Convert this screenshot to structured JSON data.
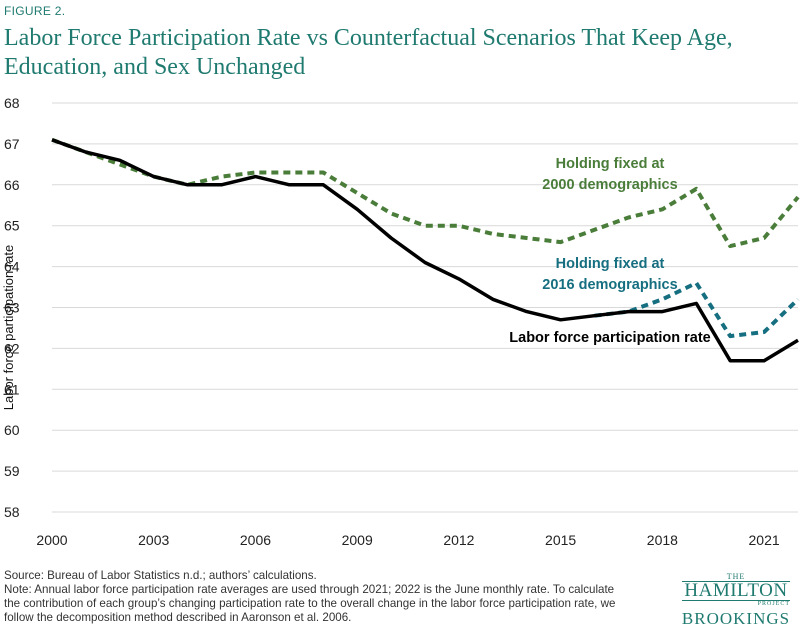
{
  "figure_label": "FIGURE 2.",
  "title": "Labor Force Participation Rate vs Counterfactual Scenarios That Keep Age, Education, and Sex Unchanged",
  "source": "Source: Bureau of Labor Statistics n.d.; authors’ calculations.",
  "note_lines": [
    "Note: Annual labor force participation rate averages are used through 2021; 2022 is the June monthly rate. To calculate",
    "the contribution of each group’s changing participation rate to the overall change in the labor force participation rate, we",
    "follow the decomposition method described in Aaronson et al. 2006."
  ],
  "logo": {
    "the": "THE",
    "hamilton": "HAMILTON",
    "project": "PROJECT",
    "brookings": "BROOKINGS"
  },
  "colors": {
    "title": "#1f7a70",
    "actual": "#000000",
    "fixed_2000": "#4a7d3a",
    "fixed_2016": "#166f80"
  },
  "chart_data": {
    "type": "line",
    "title": "Labor Force Participation Rate vs Counterfactual Scenarios That Keep Age, Education, and Sex Unchanged",
    "xlabel": "",
    "ylabel": "Labor force participation rate",
    "xlim": [
      2000,
      2022
    ],
    "ylim": [
      58,
      68
    ],
    "xticks": [
      2000,
      2003,
      2006,
      2009,
      2012,
      2015,
      2018,
      2021
    ],
    "yticks": [
      58,
      59,
      60,
      61,
      62,
      63,
      64,
      65,
      66,
      67,
      68
    ],
    "grid": "horizontal",
    "series": [
      {
        "name": "Labor force participation rate",
        "style": "solid",
        "color": "#000000",
        "label_lines": [
          "Labor force participation rate"
        ],
        "x": [
          2000,
          2001,
          2002,
          2003,
          2004,
          2005,
          2006,
          2007,
          2008,
          2009,
          2010,
          2011,
          2012,
          2013,
          2014,
          2015,
          2016,
          2017,
          2018,
          2019,
          2020,
          2021,
          2022
        ],
        "y": [
          67.1,
          66.8,
          66.6,
          66.2,
          66.0,
          66.0,
          66.2,
          66.0,
          66.0,
          65.4,
          64.7,
          64.1,
          63.7,
          63.2,
          62.9,
          62.7,
          62.8,
          62.9,
          62.9,
          63.1,
          61.7,
          61.7,
          62.2
        ]
      },
      {
        "name": "Holding fixed at 2000 demographics",
        "style": "dashed",
        "color": "#4a7d3a",
        "label_lines": [
          "Holding fixed at",
          "2000 demographics"
        ],
        "x": [
          2000,
          2001,
          2002,
          2003,
          2004,
          2005,
          2006,
          2007,
          2008,
          2009,
          2010,
          2011,
          2012,
          2013,
          2014,
          2015,
          2016,
          2017,
          2018,
          2019,
          2020,
          2021,
          2022
        ],
        "y": [
          67.1,
          66.8,
          66.5,
          66.2,
          66.0,
          66.2,
          66.3,
          66.3,
          66.3,
          65.8,
          65.3,
          65.0,
          65.0,
          64.8,
          64.7,
          64.6,
          64.9,
          65.2,
          65.4,
          65.9,
          64.5,
          64.7,
          65.7
        ]
      },
      {
        "name": "Holding fixed at 2016 demographics",
        "style": "dashed",
        "color": "#166f80",
        "label_lines": [
          "Holding fixed at",
          "2016 demographics"
        ],
        "x": [
          2016,
          2017,
          2018,
          2019,
          2020,
          2021,
          2022
        ],
        "y": [
          62.8,
          62.9,
          63.2,
          63.6,
          62.3,
          62.4,
          63.2
        ]
      }
    ]
  }
}
